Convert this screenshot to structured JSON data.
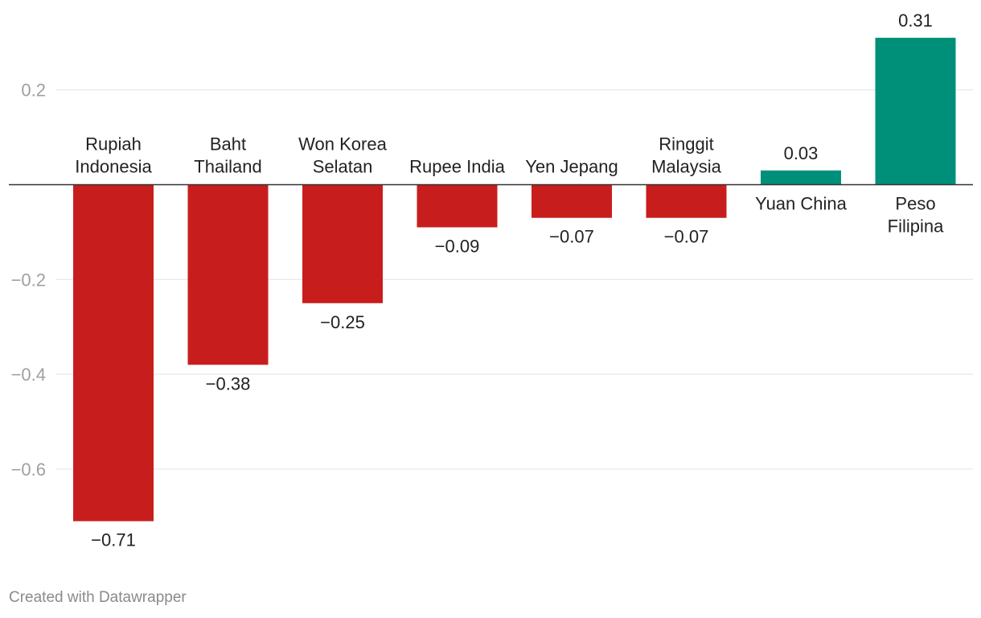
{
  "chart_data": {
    "type": "bar",
    "orientation": "vertical",
    "categories": [
      [
        "Rupiah",
        "Indonesia"
      ],
      [
        "Baht",
        "Thailand"
      ],
      [
        "Won Korea",
        "Selatan"
      ],
      [
        "Rupee India"
      ],
      [
        "Yen Jepang"
      ],
      [
        "Ringgit",
        "Malaysia"
      ],
      [
        "Yuan China"
      ],
      [
        "Peso",
        "Filipina"
      ]
    ],
    "values": [
      -0.71,
      -0.38,
      -0.25,
      -0.09,
      -0.07,
      -0.07,
      0.03,
      0.31
    ],
    "value_labels": [
      "−0.71",
      "−0.38",
      "−0.25",
      "−0.09",
      "−0.07",
      "−0.07",
      "0.03",
      "0.31"
    ],
    "ylim": [
      -0.71,
      0.31
    ],
    "yticks": [
      0.2,
      -0.2,
      -0.4,
      -0.6
    ],
    "ytick_labels": [
      "0.2",
      "−0.2",
      "−0.4",
      "−0.6"
    ],
    "gridlines": true,
    "colors": {
      "negative": "#c71e1d",
      "positive": "#00907a"
    },
    "title": "",
    "xlabel": "",
    "ylabel": ""
  },
  "footer": "Created with Datawrapper"
}
